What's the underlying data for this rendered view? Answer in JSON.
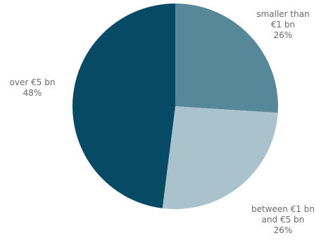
{
  "chart_data": {
    "type": "pie",
    "title": "",
    "start_angle_deg": 0,
    "direction": "clockwise",
    "slices": [
      {
        "label_lines": [
          "smaller than",
          "€1 bn"
        ],
        "value": 26,
        "value_label": "26%",
        "color": "#56889a"
      },
      {
        "label_lines": [
          "between €1 bn",
          "and €5 bn"
        ],
        "value": 26,
        "value_label": "26%",
        "color": "#a9c2cc"
      },
      {
        "label_lines": [
          "over €5 bn"
        ],
        "value": 48,
        "value_label": "48%",
        "color": "#064a66"
      }
    ],
    "legend": "none"
  }
}
